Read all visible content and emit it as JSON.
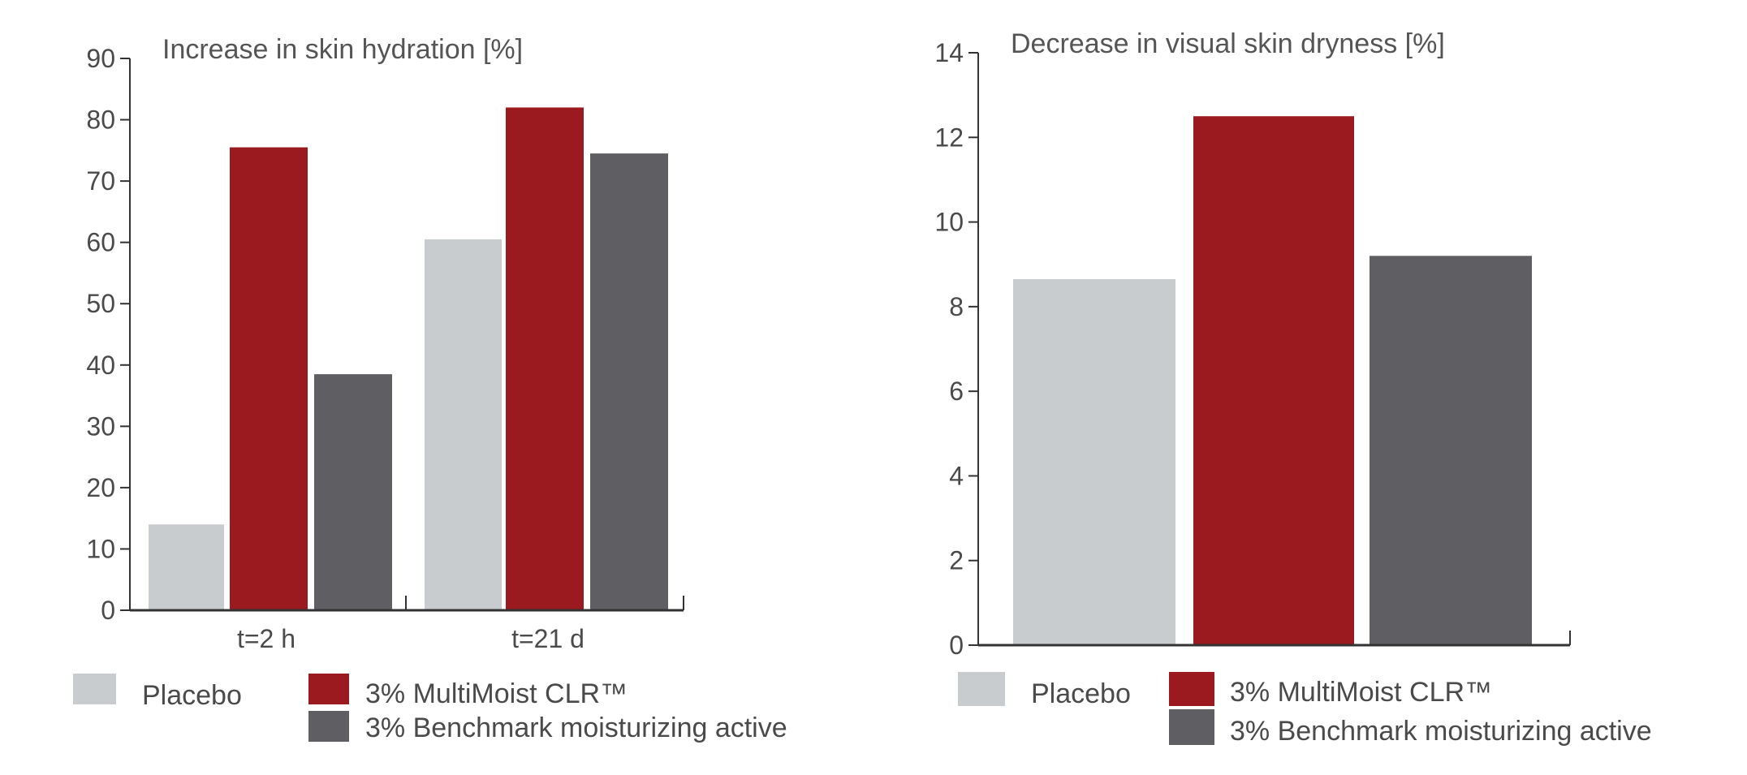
{
  "chart_data": [
    {
      "type": "bar",
      "title": "Increase in skin hydration [%]",
      "categories": [
        "t=2 h",
        "t=21 d"
      ],
      "series": [
        {
          "name": "Placebo",
          "values": [
            14,
            60.5
          ],
          "color": "#c9cccf"
        },
        {
          "name": "3% MultiMoist CLR™",
          "values": [
            75.5,
            82
          ],
          "color": "#9b1a1f"
        },
        {
          "name": "3% Benchmark moisturizing active",
          "values": [
            38.5,
            74.5
          ],
          "color": "#5f5e63"
        }
      ],
      "ylim": [
        0,
        90
      ],
      "yticks": [
        "0",
        "10",
        "20",
        "30",
        "40",
        "50",
        "60",
        "70",
        "80",
        "90"
      ],
      "xlabel": "",
      "ylabel": "",
      "grid": false,
      "legend_position": "bottom"
    },
    {
      "type": "bar",
      "title": "Decrease in visual skin dryness [%]",
      "categories": [
        ""
      ],
      "series": [
        {
          "name": "Placebo",
          "values": [
            8.65
          ],
          "color": "#c9cccf"
        },
        {
          "name": "3% MultiMoist CLR™",
          "values": [
            12.5
          ],
          "color": "#9b1a1f"
        },
        {
          "name": "3% Benchmark moisturizing active",
          "values": [
            9.2
          ],
          "color": "#5f5e63"
        }
      ],
      "ylim": [
        0,
        14
      ],
      "yticks": [
        "0",
        "2",
        "4",
        "6",
        "8",
        "10",
        "12",
        "14"
      ],
      "xlabel": "",
      "ylabel": "",
      "grid": false,
      "legend_position": "bottom"
    }
  ]
}
